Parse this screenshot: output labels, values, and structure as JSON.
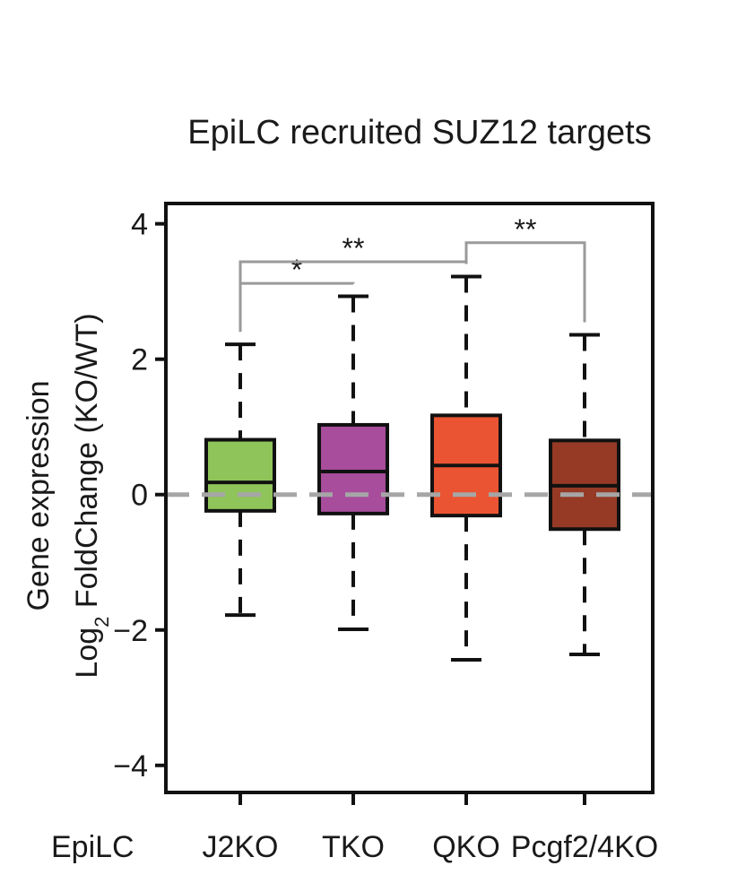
{
  "chart_data": {
    "type": "box",
    "title": "EpiLC recruited SUZ12 targets",
    "ylabel_line1": "Gene expression",
    "ylabel_line2_prefix": "Log",
    "ylabel_line2_sub": "2",
    "ylabel_line2_suffix": " FoldChange (KO/WT)",
    "xprefix": "EpiLC",
    "ylim": [
      -4.4,
      4.3
    ],
    "yticks": [
      4,
      2,
      0,
      -2,
      -4
    ],
    "ytick_labels": [
      "4",
      "2",
      "0",
      "−2",
      "−4"
    ],
    "reference_line": 0,
    "categories": [
      "J2KO",
      "TKO",
      "QKO",
      "Pcgf2/4KO"
    ],
    "boxes": [
      {
        "category": "J2KO",
        "whisker_low": -1.78,
        "q1": -0.24,
        "median": 0.18,
        "q3": 0.81,
        "whisker_high": 2.22,
        "color": "#8fc45a"
      },
      {
        "category": "TKO",
        "whisker_low": -1.99,
        "q1": -0.28,
        "median": 0.34,
        "q3": 1.03,
        "whisker_high": 2.93,
        "color": "#a74d9b"
      },
      {
        "category": "QKO",
        "whisker_low": -2.44,
        "q1": -0.31,
        "median": 0.43,
        "q3": 1.17,
        "whisker_high": 3.22,
        "color": "#ea5432"
      },
      {
        "category": "Pcgf2/4KO",
        "whisker_low": -2.36,
        "q1": -0.51,
        "median": 0.13,
        "q3": 0.8,
        "whisker_high": 2.36,
        "color": "#963a26"
      }
    ],
    "significance": [
      {
        "from": 0,
        "to": 1,
        "y": 3.12,
        "label": "*"
      },
      {
        "from": 0,
        "to": 2,
        "y": 3.44,
        "label": "**"
      },
      {
        "from": 2,
        "to": 3,
        "y": 3.72,
        "label": "**"
      }
    ]
  }
}
